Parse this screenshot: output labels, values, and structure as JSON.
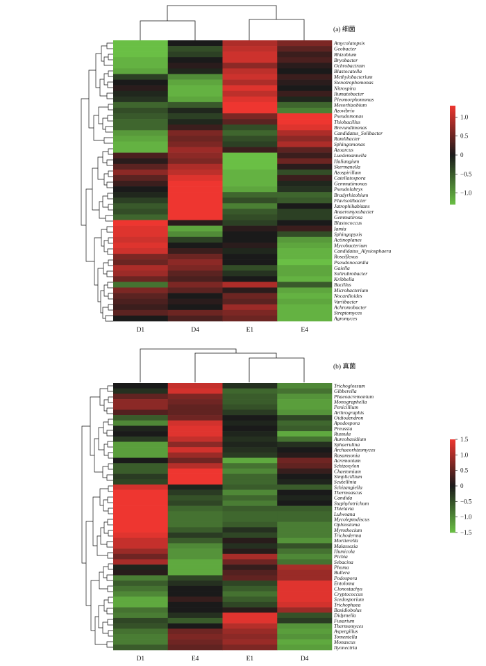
{
  "chart_data": [
    {
      "type": "heatmap",
      "title": "(a) 细菌",
      "columns": [
        "D1",
        "D4",
        "E1",
        "E4"
      ],
      "rows": [
        "Amycolatopsis",
        "Geobacter",
        "Rhizobium",
        "Bryobacter",
        "Ochrobactrum",
        "Blastocatella",
        "Methylobacterium",
        "Stenotrophomonas",
        "Nitrospira",
        "Ilumatobacter",
        "Pleomorphomonas",
        "Mesorhizobium",
        "Azovibrio",
        "Pseudomonas",
        "Thiobacillus",
        "Brevundimonas",
        "Candidatus_Solibacter",
        "Ramlibacter",
        "Sphingomonas",
        "Azoarcus",
        "Luedemannella",
        "Haliangium",
        "Skermanella",
        "Azospirillum",
        "Catellatospora",
        "Gemmatimonas",
        "Pseudolabrys",
        "Bradyrhizobium",
        "Flavisolibacter",
        "Jatrophihabitans",
        "Anaeromyxobacter",
        "Gemmatirosa",
        "Blastococcus",
        "Iamia",
        "Sphingopyxis",
        "Actinoplanes",
        "Mycobacterium",
        "Candidatus_Alysiosphaera",
        "Roseiflexus",
        "Pseudonocardia",
        "Gaiella",
        "Solirubrobacter",
        "Kribbella",
        "Bacillus",
        "Microbacterium",
        "Nocardioides",
        "Variibacter",
        "Achromobacter",
        "Streptomyces",
        "Agromyces"
      ],
      "values": [
        [
          -1.3,
          0.0,
          0.9,
          0.6
        ],
        [
          -1.3,
          -0.4,
          1.0,
          0.4
        ],
        [
          -1.3,
          -0.3,
          1.1,
          0.2
        ],
        [
          -1.2,
          0.0,
          1.1,
          0.3
        ],
        [
          -1.2,
          0.1,
          0.7,
          0.1
        ],
        [
          -1.1,
          -0.1,
          1.0,
          0.0
        ],
        [
          -0.3,
          -0.9,
          1.1,
          0.2
        ],
        [
          0.0,
          -1.1,
          0.9,
          0.1
        ],
        [
          0.1,
          -1.2,
          1.2,
          0.0
        ],
        [
          -0.1,
          -1.2,
          1.0,
          0.2
        ],
        [
          -0.2,
          -1.1,
          1.2,
          -0.1
        ],
        [
          -0.6,
          -0.5,
          1.3,
          -0.6
        ],
        [
          -0.4,
          -0.1,
          1.3,
          -0.8
        ],
        [
          -0.5,
          -0.3,
          0.6,
          1.3
        ],
        [
          -0.6,
          -0.1,
          0.4,
          1.3
        ],
        [
          -0.6,
          0.2,
          -0.4,
          1.2
        ],
        [
          -1.0,
          0.6,
          -0.6,
          0.9
        ],
        [
          -1.1,
          0.5,
          -0.4,
          0.7
        ],
        [
          -1.2,
          0.6,
          -0.3,
          0.9
        ],
        [
          -1.2,
          0.8,
          0.2,
          0.4
        ],
        [
          0.3,
          0.7,
          -1.3,
          0.2
        ],
        [
          0.1,
          0.6,
          -1.3,
          0.5
        ],
        [
          0.4,
          0.9,
          -1.3,
          0.1
        ],
        [
          0.7,
          1.0,
          -1.2,
          -0.4
        ],
        [
          0.4,
          1.2,
          -1.2,
          0.2
        ],
        [
          0.2,
          1.3,
          -1.2,
          -0.1
        ],
        [
          0.0,
          1.3,
          -1.1,
          -0.2
        ],
        [
          -0.1,
          1.3,
          -0.6,
          -0.6
        ],
        [
          -0.3,
          1.3,
          -0.4,
          -0.5
        ],
        [
          -0.5,
          1.3,
          -0.8,
          0.0
        ],
        [
          -0.4,
          1.3,
          -0.5,
          -0.3
        ],
        [
          -0.6,
          1.3,
          -0.4,
          -0.3
        ],
        [
          1.3,
          0.1,
          -0.3,
          0.0
        ],
        [
          1.2,
          -1.1,
          0.1,
          0.2
        ],
        [
          1.2,
          -0.9,
          0.0,
          -0.4
        ],
        [
          1.1,
          -0.3,
          0.0,
          -1.0
        ],
        [
          1.2,
          0.0,
          0.1,
          -1.1
        ],
        [
          1.1,
          0.2,
          -0.1,
          -1.2
        ],
        [
          0.6,
          0.5,
          0.0,
          -1.2
        ],
        [
          0.5,
          0.7,
          0.0,
          -1.3
        ],
        [
          0.9,
          0.6,
          -0.4,
          -1.1
        ],
        [
          0.8,
          0.4,
          -0.2,
          -1.1
        ],
        [
          0.5,
          0.3,
          0.0,
          -1.2
        ],
        [
          -0.7,
          0.6,
          0.9,
          -0.5
        ],
        [
          0.6,
          0.4,
          0.1,
          -1.1
        ],
        [
          0.4,
          0.0,
          0.5,
          -1.2
        ],
        [
          0.3,
          0.1,
          0.4,
          -1.1
        ],
        [
          0.2,
          0.0,
          0.8,
          -1.2
        ],
        [
          0.4,
          0.5,
          0.6,
          -1.2
        ],
        [
          0.0,
          0.3,
          0.5,
          -1.2
        ]
      ],
      "colorbar": {
        "ticks": [
          1.0,
          0.5,
          0.0,
          -0.5,
          -1.0
        ],
        "tick_labels": [
          "1.0",
          "0.5",
          "0",
          "−0.5",
          "−1.0"
        ],
        "min": -1.3,
        "max": 1.3
      },
      "colors": {
        "low": "#6abf45",
        "mid": "#1a1a1a",
        "high": "#ee3630"
      }
    },
    {
      "type": "heatmap",
      "title": "(b) 真菌",
      "columns": [
        "D1",
        "E4",
        "E1",
        "D4"
      ],
      "rows": [
        "Trichoglossum",
        "Gibberella",
        "Phaeoacremonium",
        "Monographella",
        "Penicillium",
        "Arthrographis",
        "Oidiodendron",
        "Apodospora",
        "Preussia",
        "Russula",
        "Aureobasidium",
        "Sphaerulina",
        "Archaeorhizomyces",
        "Rasamsonia",
        "Acremonium",
        "Schizoxylon",
        "Chaetomium",
        "Simplicillium",
        "Scutellinia",
        "Schizangiella",
        "Thermoascus",
        "Candida",
        "Staphylotrichum",
        "Thielavia",
        "Lulwoana",
        "Mycoleptodiscus",
        "Ophiostoma",
        "Myrothecium",
        "Trichoderma",
        "Mortierella",
        "Malassezia",
        "Humicola",
        "Pichia",
        "Sebacina",
        "Phoma",
        "Bullera",
        "Podospora",
        "Entoloma",
        "Clonostachys",
        "Cryptococcus",
        "Scedosporium",
        "Trichophaea",
        "Basidiobolus",
        "Didymella",
        "Fusarium",
        "Thermomyces",
        "Aspergillus",
        "Tomentella",
        "Monascus",
        "Ilyonectria"
      ],
      "values": [
        [
          0.0,
          1.2,
          -0.2,
          -1.0
        ],
        [
          -0.2,
          1.3,
          -0.7,
          -0.8
        ],
        [
          0.5,
          0.7,
          -0.6,
          -1.1
        ],
        [
          0.8,
          0.6,
          -0.6,
          -1.2
        ],
        [
          0.8,
          0.5,
          -0.5,
          -1.2
        ],
        [
          0.4,
          0.5,
          -0.3,
          -1.1
        ],
        [
          -0.6,
          0.6,
          0.0,
          -0.4
        ],
        [
          -1.0,
          1.3,
          -0.1,
          -0.7
        ],
        [
          -0.1,
          1.4,
          0.0,
          -0.6
        ],
        [
          0.0,
          1.4,
          -0.1,
          -1.3
        ],
        [
          -0.3,
          1.2,
          -0.2,
          -0.8
        ],
        [
          -1.2,
          0.8,
          -0.1,
          -0.2
        ],
        [
          -1.2,
          1.3,
          -0.2,
          0.0
        ],
        [
          -1.2,
          0.9,
          -0.3,
          0.1
        ],
        [
          0.0,
          0.6,
          -1.3,
          0.6
        ],
        [
          -0.6,
          1.1,
          -0.8,
          0.5
        ],
        [
          -0.6,
          1.5,
          -1.0,
          0.2
        ],
        [
          -0.3,
          1.5,
          -0.7,
          0.0
        ],
        [
          -0.4,
          1.5,
          -0.7,
          -0.1
        ],
        [
          1.3,
          -0.1,
          -0.6,
          -0.6
        ],
        [
          1.5,
          -0.3,
          -1.0,
          0.0
        ],
        [
          1.5,
          -0.5,
          -0.7,
          -0.1
        ],
        [
          1.5,
          -0.4,
          -0.9,
          0.0
        ],
        [
          1.5,
          -0.7,
          -0.6,
          -0.6
        ],
        [
          1.5,
          -0.8,
          -0.7,
          -0.7
        ],
        [
          1.5,
          -0.8,
          -0.7,
          -0.7
        ],
        [
          1.5,
          -0.8,
          -0.6,
          -0.9
        ],
        [
          1.5,
          -0.6,
          -0.2,
          -0.9
        ],
        [
          1.4,
          -0.3,
          -0.4,
          -0.9
        ],
        [
          1.2,
          -0.6,
          0.1,
          -1.1
        ],
        [
          1.2,
          -1.0,
          -0.2,
          -0.5
        ],
        [
          0.9,
          -1.1,
          0.1,
          -0.8
        ],
        [
          0.6,
          -1.1,
          1.0,
          -1.0
        ],
        [
          1.0,
          -1.3,
          0.6,
          -0.8
        ],
        [
          -0.1,
          -1.3,
          0.2,
          1.0
        ],
        [
          0.1,
          -1.3,
          0.4,
          0.9
        ],
        [
          -0.9,
          -0.4,
          0.5,
          0.9
        ],
        [
          -0.6,
          -0.2,
          -0.4,
          1.4
        ],
        [
          -0.8,
          0.0,
          -0.6,
          1.4
        ],
        [
          -1.0,
          0.0,
          -0.8,
          1.4
        ],
        [
          -1.3,
          0.2,
          -0.6,
          1.4
        ],
        [
          -1.3,
          0.0,
          -0.4,
          1.3
        ],
        [
          -0.8,
          0.0,
          0.1,
          0.9
        ],
        [
          -0.9,
          -0.2,
          1.4,
          -0.5
        ],
        [
          -0.4,
          -0.6,
          1.4,
          -0.3
        ],
        [
          -0.5,
          0.0,
          1.1,
          -1.1
        ],
        [
          -0.8,
          0.6,
          0.9,
          -1.2
        ],
        [
          -0.9,
          0.7,
          0.8,
          -1.1
        ],
        [
          -0.9,
          0.6,
          0.9,
          -1.3
        ],
        [
          -0.6,
          0.5,
          0.7,
          -1.2
        ]
      ],
      "colorbar": {
        "ticks": [
          1.5,
          1.0,
          0.5,
          0.0,
          -0.5,
          -1.0,
          -1.5
        ],
        "tick_labels": [
          "1.5",
          "1.0",
          "0.5",
          "0",
          "−0.5",
          "−1.0",
          "−1.5"
        ],
        "min": -1.5,
        "max": 1.5
      },
      "colors": {
        "low": "#6abf45",
        "mid": "#1a1a1a",
        "high": "#ee3630"
      }
    }
  ]
}
